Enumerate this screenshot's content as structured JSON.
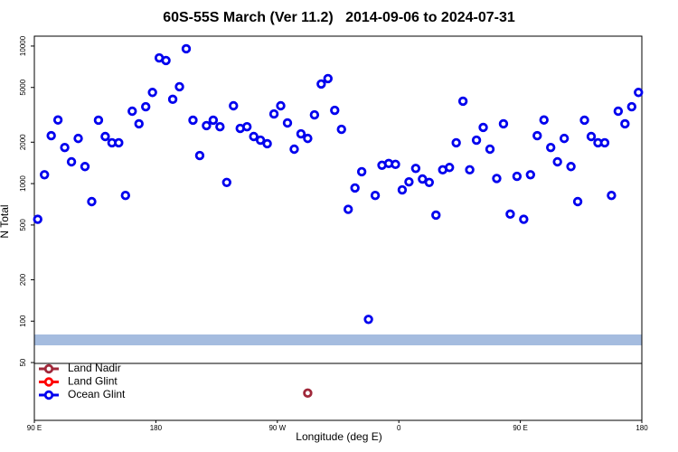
{
  "chart_data": {
    "type": "scatter",
    "title": "60S-55S March (Ver 11.2)   2014-09-06 to 2024-07-31",
    "xlabel": "Longitude (deg E)",
    "ylabel": "N Total",
    "xlim": [
      90,
      540
    ],
    "ylim": [
      19,
      11800
    ],
    "log_y": true,
    "xticks": [
      {
        "value": 90,
        "label": "90 E"
      },
      180,
      {
        "value": 270,
        "label": "90 W"
      },
      {
        "value": 360,
        "label": "0"
      },
      {
        "value": 450,
        "label": "90 E"
      },
      {
        "value": 540,
        "label": "180"
      }
    ],
    "yticks": [
      50,
      100,
      200,
      500,
      1000,
      2000,
      5000,
      10000
    ],
    "legend": "bottom-left",
    "series": [
      {
        "name": "Land Nadir",
        "color": "#a0283a",
        "x": [
          292.5
        ],
        "values": [
          30
        ]
      },
      {
        "name": "Land Glint",
        "color": "#ff0000",
        "x": [],
        "values": []
      },
      {
        "name": "Ocean Glint",
        "color": "#0000ee",
        "x": [
          92.5,
          97.5,
          102.5,
          107.5,
          112.5,
          117.5,
          122.5,
          127.5,
          132.5,
          137.5,
          142.5,
          147.5,
          152.5,
          157.5,
          162.5,
          167.5,
          172.5,
          177.5,
          182.5,
          187.5,
          192.5,
          197.5,
          202.5,
          207.5,
          212.5,
          217.5,
          222.5,
          227.5,
          232.5,
          237.5,
          242.5,
          247.5,
          252.5,
          257.5,
          262.5,
          267.5,
          272.5,
          277.5,
          282.5,
          287.5,
          292.5,
          297.5,
          302.5,
          307.5,
          312.5,
          317.5,
          322.5,
          327.5,
          332.5,
          337.5,
          342.5,
          347.5,
          352.5,
          357.5,
          362.5,
          367.5,
          372.5,
          377.5,
          382.5,
          387.5,
          392.5,
          397.5,
          402.5,
          407.5,
          412.5,
          417.5,
          422.5,
          427.5,
          432.5,
          437.5,
          442.5,
          447.5,
          452.5,
          457.5,
          462.5,
          467.5,
          472.5,
          477.5,
          482.5,
          487.5,
          492.5,
          497.5,
          502.5,
          507.5,
          512.5,
          517.5,
          522.5,
          527.5,
          532.5,
          537.5
        ],
        "values": [
          550,
          1160,
          2230,
          2900,
          1830,
          1440,
          2130,
          1330,
          740,
          2890,
          2200,
          1980,
          1980,
          820,
          3360,
          2720,
          3620,
          4600,
          8200,
          7850,
          4100,
          5060,
          9550,
          2890,
          1600,
          2640,
          2890,
          2590,
          1020,
          3680,
          2520,
          2590,
          2200,
          2070,
          1950,
          3210,
          3680,
          2760,
          1780,
          2300,
          2130,
          3160,
          5300,
          5800,
          3410,
          2480,
          650,
          930,
          1220,
          103,
          820,
          1360,
          1400,
          1380,
          900,
          1030,
          1290,
          1080,
          1020,
          590,
          1260,
          1310,
          1980,
          3970,
          1260,
          2070,
          2560,
          1780,
          1090,
          2720,
          600,
          1130,
          550,
          1160,
          2230,
          2900,
          1830,
          1440,
          2130,
          1330,
          740,
          2890,
          2200,
          1980,
          1980,
          820,
          3360,
          2720,
          3620,
          4600
        ]
      }
    ]
  }
}
